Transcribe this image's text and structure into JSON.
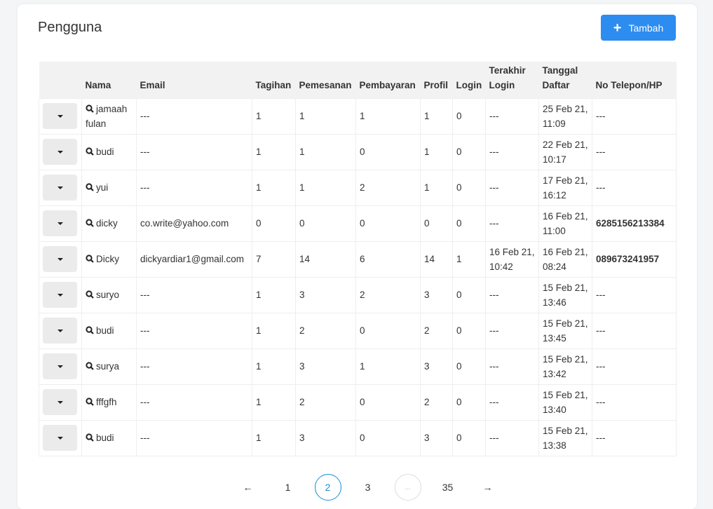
{
  "page": {
    "title": "Pengguna",
    "add_label": "Tambah"
  },
  "table": {
    "headers": [
      "",
      "Nama",
      "Email",
      "Tagihan",
      "Pemesanan",
      "Pembayaran",
      "Profil",
      "Login",
      "Terakhir Login",
      "Tanggal Daftar",
      "No Telepon/HP"
    ],
    "rows": [
      [
        "jamaah fulan",
        "---",
        "1",
        "1",
        "1",
        "1",
        "0",
        "---",
        "25 Feb 21, 11:09",
        "---"
      ],
      [
        "budi",
        "---",
        "1",
        "1",
        "0",
        "1",
        "0",
        "---",
        "22 Feb 21, 10:17",
        "---"
      ],
      [
        "yui",
        "---",
        "1",
        "1",
        "2",
        "1",
        "0",
        "---",
        "17 Feb 21, 16:12",
        "---"
      ],
      [
        "dicky",
        "co.write@yahoo.com",
        "0",
        "0",
        "0",
        "0",
        "0",
        "---",
        "16 Feb 21, 11:00",
        "6285156213384"
      ],
      [
        "Dicky",
        "dickyardiar1@gmail.com",
        "7",
        "14",
        "6",
        "14",
        "1",
        "16 Feb 21, 10:42",
        "16 Feb 21, 08:24",
        "089673241957"
      ],
      [
        "suryo",
        "---",
        "1",
        "3",
        "2",
        "3",
        "0",
        "---",
        "15 Feb 21, 13:46",
        "---"
      ],
      [
        "budi",
        "---",
        "1",
        "2",
        "0",
        "2",
        "0",
        "---",
        "15 Feb 21, 13:45",
        "---"
      ],
      [
        "surya",
        "---",
        "1",
        "3",
        "1",
        "3",
        "0",
        "---",
        "15 Feb 21, 13:42",
        "---"
      ],
      [
        "fffgfh",
        "---",
        "1",
        "2",
        "0",
        "2",
        "0",
        "---",
        "15 Feb 21, 13:40",
        "---"
      ],
      [
        "budi",
        "---",
        "1",
        "3",
        "0",
        "3",
        "0",
        "---",
        "15 Feb 21, 13:38",
        "---"
      ]
    ]
  },
  "pagination": {
    "prev": "←",
    "pages": [
      "1",
      "2",
      "3",
      "...",
      "35"
    ],
    "current": "2",
    "next": "→"
  },
  "colors": {
    "accent": "#2d8cf0",
    "active_page": "#1a8fd0"
  }
}
